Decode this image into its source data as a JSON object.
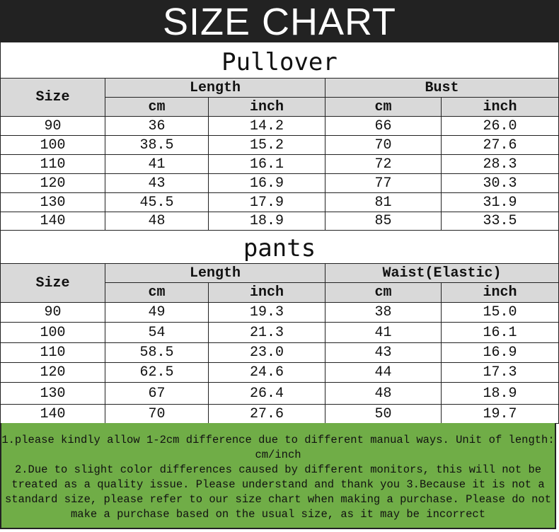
{
  "banner": {
    "title": "SIZE CHART"
  },
  "colors": {
    "banner_bg": "#222222",
    "header_bg": "#d9d9d9",
    "notes_bg": "#70ad47"
  },
  "tables": [
    {
      "title": "Pullover",
      "size_label": "Size",
      "groups": [
        "Length",
        "Bust"
      ],
      "units": [
        "cm",
        "inch",
        "cm",
        "inch"
      ],
      "rows": [
        [
          "90",
          "36",
          "14.2",
          "66",
          "26.0"
        ],
        [
          "100",
          "38.5",
          "15.2",
          "70",
          "27.6"
        ],
        [
          "110",
          "41",
          "16.1",
          "72",
          "28.3"
        ],
        [
          "120",
          "43",
          "16.9",
          "77",
          "30.3"
        ],
        [
          "130",
          "45.5",
          "17.9",
          "81",
          "31.9"
        ],
        [
          "140",
          "48",
          "18.9",
          "85",
          "33.5"
        ]
      ]
    },
    {
      "title": "pants",
      "size_label": "Size",
      "groups": [
        "Length",
        "Waist(Elastic)"
      ],
      "units": [
        "cm",
        "inch",
        "cm",
        "inch"
      ],
      "rows": [
        [
          "90",
          "49",
          "19.3",
          "38",
          "15.0"
        ],
        [
          "100",
          "54",
          "21.3",
          "41",
          "16.1"
        ],
        [
          "110",
          "58.5",
          "23.0",
          "43",
          "16.9"
        ],
        [
          "120",
          "62.5",
          "24.6",
          "44",
          "17.3"
        ],
        [
          "130",
          "67",
          "26.4",
          "48",
          "18.9"
        ],
        [
          "140",
          "70",
          "27.6",
          "50",
          "19.7"
        ]
      ]
    }
  ],
  "notes": [
    "1.please kindly allow 1-2cm difference due to different manual ways.   Unit of length: cm/inch",
    "2.Due to slight color differences caused by different monitors, this will not be treated as a quality issue. Please understand and thank you        3.Because it is not a standard size, please refer to our size chart when making a purchase. Please do not make a purchase based on the usual size, as it may be incorrect"
  ]
}
